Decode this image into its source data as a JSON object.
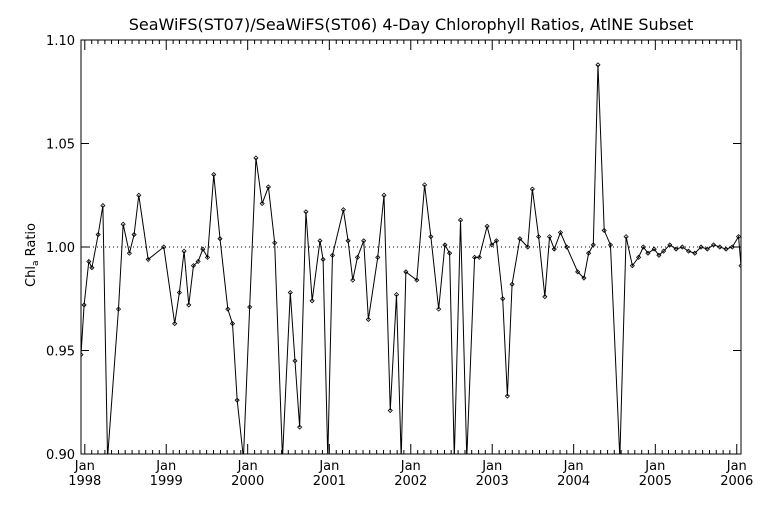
{
  "chart_data": {
    "type": "line",
    "title": "SeaWiFS(ST07)/SeaWiFS(ST06) 4-Day Chlorophyll Ratios, AtlNE Subset",
    "ylabel": "Chl_a Ratio",
    "xlabel": "",
    "ylim": [
      0.9,
      1.1
    ],
    "xlim": [
      "1997-12-15",
      "2006-01-20"
    ],
    "y_ticks": [
      "0.90",
      "0.95",
      "1.00",
      "1.05",
      "1.10"
    ],
    "x_ticks": [
      {
        "date": "1998-01-01",
        "month": "Jan",
        "year": "1998"
      },
      {
        "date": "1999-01-01",
        "month": "Jan",
        "year": "1999"
      },
      {
        "date": "2000-01-01",
        "month": "Jan",
        "year": "2000"
      },
      {
        "date": "2001-01-01",
        "month": "Jan",
        "year": "2001"
      },
      {
        "date": "2002-01-01",
        "month": "Jan",
        "year": "2002"
      },
      {
        "date": "2003-01-01",
        "month": "Jan",
        "year": "2003"
      },
      {
        "date": "2004-01-01",
        "month": "Jan",
        "year": "2004"
      },
      {
        "date": "2005-01-01",
        "month": "Jan",
        "year": "2005"
      },
      {
        "date": "2006-01-01",
        "month": "Jan",
        "year": "2006"
      }
    ],
    "reference_line": 1.0,
    "grid": false,
    "series": [
      {
        "x": [
          "1997-12-15",
          "1997-12-29",
          "1998-01-19",
          "1998-02-02",
          "1998-03-02",
          "1998-03-23",
          "1998-04-13",
          "1998-06-01",
          "1998-06-22",
          "1998-07-20",
          "1998-08-10",
          "1998-08-31",
          "1998-10-12",
          "1998-12-21",
          "1999-02-08",
          "1999-03-01",
          "1999-03-22",
          "1999-04-12",
          "1999-05-03",
          "1999-05-24",
          "1999-06-14",
          "1999-07-05",
          "1999-08-02",
          "1999-08-30",
          "1999-10-04",
          "1999-10-25",
          "1999-11-15",
          "1999-12-13",
          "2000-01-10",
          "2000-02-07",
          "2000-03-06",
          "2000-04-03",
          "2000-05-01",
          "2000-06-05",
          "2000-07-10",
          "2000-07-31",
          "2000-08-21",
          "2000-09-18",
          "2000-10-16",
          "2000-11-20",
          "2000-12-04",
          "2000-12-25",
          "2001-01-15",
          "2001-03-05",
          "2001-03-26",
          "2001-04-16",
          "2001-05-07",
          "2001-06-04",
          "2001-06-25",
          "2001-08-06",
          "2001-09-03",
          "2001-10-01",
          "2001-10-29",
          "2001-11-19",
          "2001-12-10",
          "2002-01-28",
          "2002-03-04",
          "2002-04-01",
          "2002-05-06",
          "2002-06-03",
          "2002-06-24",
          "2002-07-15",
          "2002-08-12",
          "2002-09-09",
          "2002-10-14",
          "2002-11-04",
          "2002-12-09",
          "2002-12-30",
          "2003-01-20",
          "2003-02-17",
          "2003-03-10",
          "2003-03-31",
          "2003-05-05",
          "2003-06-09",
          "2003-06-30",
          "2003-07-28",
          "2003-08-25",
          "2003-09-15",
          "2003-10-06",
          "2003-11-03",
          "2003-12-01",
          "2004-01-19",
          "2004-02-16",
          "2004-03-08",
          "2004-03-29",
          "2004-04-19",
          "2004-05-17",
          "2004-06-14",
          "2004-07-26",
          "2004-08-23",
          "2004-09-20",
          "2004-10-18",
          "2004-11-08",
          "2004-11-29",
          "2004-12-27",
          "2005-01-17",
          "2005-02-07",
          "2005-03-07",
          "2005-04-04",
          "2005-05-02",
          "2005-05-30",
          "2005-06-27",
          "2005-07-25",
          "2005-08-22",
          "2005-09-19",
          "2005-10-17",
          "2005-11-14",
          "2005-12-12",
          "2006-01-09",
          "2006-01-20"
        ],
        "y": [
          0.948,
          0.972,
          0.993,
          0.99,
          1.006,
          1.02,
          0.898,
          0.97,
          1.011,
          0.997,
          1.006,
          1.025,
          0.994,
          1.0,
          0.963,
          0.978,
          0.998,
          0.972,
          0.991,
          0.993,
          0.999,
          0.995,
          1.035,
          1.004,
          0.97,
          0.963,
          0.926,
          0.898,
          0.971,
          1.043,
          1.021,
          1.029,
          1.002,
          0.898,
          0.978,
          0.945,
          0.913,
          1.017,
          0.974,
          1.003,
          0.994,
          0.898,
          0.996,
          1.018,
          1.003,
          0.984,
          0.995,
          1.003,
          0.965,
          0.995,
          1.025,
          0.921,
          0.977,
          0.898,
          0.988,
          0.984,
          1.03,
          1.005,
          0.97,
          1.001,
          0.997,
          0.898,
          1.013,
          0.898,
          0.995,
          0.995,
          1.01,
          1.001,
          1.003,
          0.975,
          0.928,
          0.982,
          1.004,
          1.0,
          1.028,
          1.005,
          0.976,
          1.005,
          0.999,
          1.007,
          1.0,
          0.988,
          0.985,
          0.997,
          1.001,
          1.088,
          1.008,
          1.001,
          0.898,
          1.005,
          0.991,
          0.995,
          1.0,
          0.997,
          0.999,
          0.996,
          0.998,
          1.001,
          0.999,
          1.0,
          0.998,
          0.997,
          1.0,
          0.999,
          1.001,
          1.0,
          0.999,
          1.0,
          1.005,
          0.991
        ]
      }
    ]
  }
}
